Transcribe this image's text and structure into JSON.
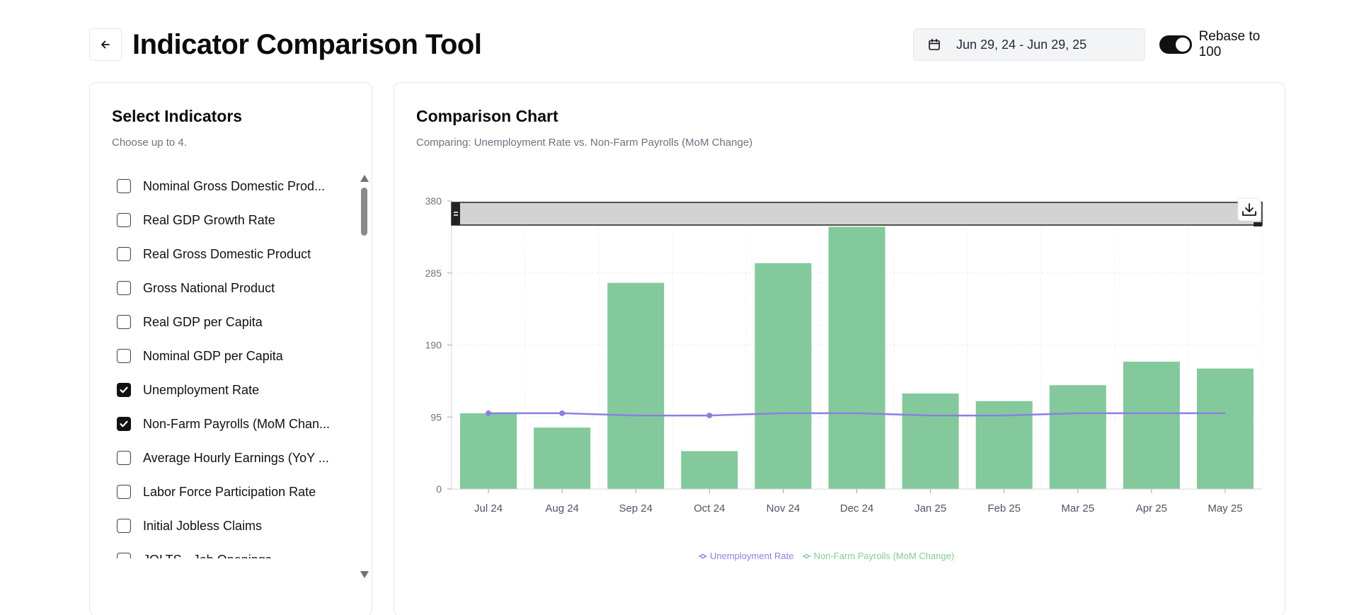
{
  "header": {
    "title": "Indicator Comparison Tool",
    "date_range": "Jun 29, 24 - Jun 29, 25",
    "toggle_label": "Rebase to 100",
    "toggle_on": true
  },
  "indicators": {
    "title": "Select Indicators",
    "subtitle": "Choose up to 4.",
    "items": [
      {
        "label": "Nominal Gross Domestic Prod...",
        "checked": false
      },
      {
        "label": "Real GDP Growth Rate",
        "checked": false
      },
      {
        "label": "Real Gross Domestic Product",
        "checked": false
      },
      {
        "label": "Gross National Product",
        "checked": false
      },
      {
        "label": "Real GDP per Capita",
        "checked": false
      },
      {
        "label": "Nominal GDP per Capita",
        "checked": false
      },
      {
        "label": "Unemployment Rate",
        "checked": true
      },
      {
        "label": "Non-Farm Payrolls (MoM Chan...",
        "checked": true
      },
      {
        "label": "Average Hourly Earnings (YoY ...",
        "checked": false
      },
      {
        "label": "Labor Force Participation Rate",
        "checked": false
      },
      {
        "label": "Initial Jobless Claims",
        "checked": false
      },
      {
        "label": "JOLTS - Job Openings",
        "checked": false
      }
    ]
  },
  "chart_panel": {
    "title": "Comparison Chart",
    "subtitle": "Comparing: Unemployment Rate vs. Non-Farm Payrolls (MoM Change)"
  },
  "chart_data": {
    "type": "bar",
    "categories": [
      "Jul 24",
      "Aug 24",
      "Sep 24",
      "Oct 24",
      "Nov 24",
      "Dec 24",
      "Jan 25",
      "Feb 25",
      "Mar 25",
      "Apr 25",
      "May 25"
    ],
    "series": [
      {
        "name": "Unemployment Rate",
        "type": "line",
        "color": "#8b80e0",
        "values": [
          100,
          100,
          97,
          97,
          100,
          100,
          97,
          97,
          100,
          100,
          100
        ]
      },
      {
        "name": "Non-Farm Payrolls (MoM Change)",
        "type": "bar",
        "color": "#83c99b",
        "values": [
          100,
          81,
          272,
          50,
          298,
          346,
          126,
          116,
          137,
          168,
          159
        ]
      }
    ],
    "yticks": [
      "0",
      "95",
      "190",
      "285",
      "380"
    ],
    "ylim": [
      0,
      380
    ],
    "grid": true,
    "legend": "bottom",
    "marker_points": [
      0,
      1,
      3
    ]
  }
}
